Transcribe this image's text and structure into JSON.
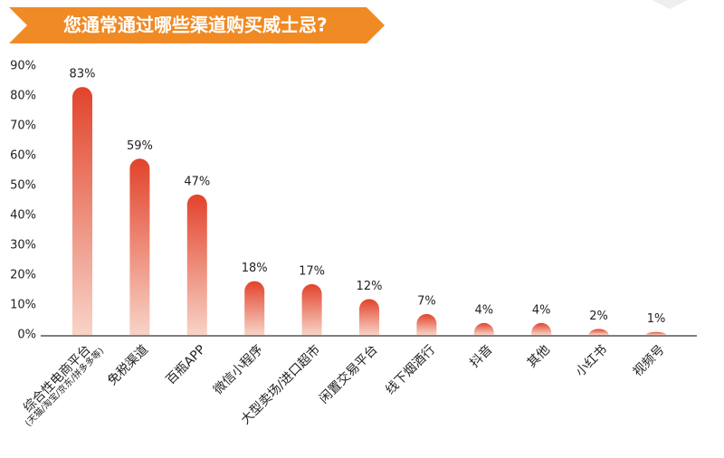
{
  "chart_data": {
    "type": "bar",
    "title": "您通常通过哪些渠道购买威士忌?",
    "categories": [
      "综合性电商平台",
      "免税渠道",
      "百瓶APP",
      "微信小程序",
      "大型卖场/进口超市",
      "闲置交易平台",
      "线下烟酒行",
      "抖音",
      "其他",
      "小红书",
      "视频号"
    ],
    "category_sublabels": [
      "(天猫/淘宝/京东/拼多多等)",
      null,
      null,
      null,
      null,
      null,
      null,
      null,
      null,
      null,
      null
    ],
    "values": [
      83,
      59,
      47,
      18,
      17,
      12,
      7,
      4,
      4,
      2,
      1
    ],
    "value_labels": [
      "83%",
      "59%",
      "47%",
      "18%",
      "17%",
      "12%",
      "7%",
      "4%",
      "4%",
      "2%",
      "1%"
    ],
    "color": "#e2432b",
    "ylim": [
      0,
      90
    ],
    "yticks": [
      {
        "value": 0,
        "label": "0%"
      },
      {
        "value": 10,
        "label": "10%"
      },
      {
        "value": 20,
        "label": "20%"
      },
      {
        "value": 30,
        "label": "30%"
      },
      {
        "value": 40,
        "label": "40%"
      },
      {
        "value": 50,
        "label": "50%"
      },
      {
        "value": 60,
        "label": "60%"
      },
      {
        "value": 70,
        "label": "70%"
      },
      {
        "value": 80,
        "label": "80%"
      },
      {
        "value": 90,
        "label": "90%"
      }
    ],
    "grid": false
  }
}
